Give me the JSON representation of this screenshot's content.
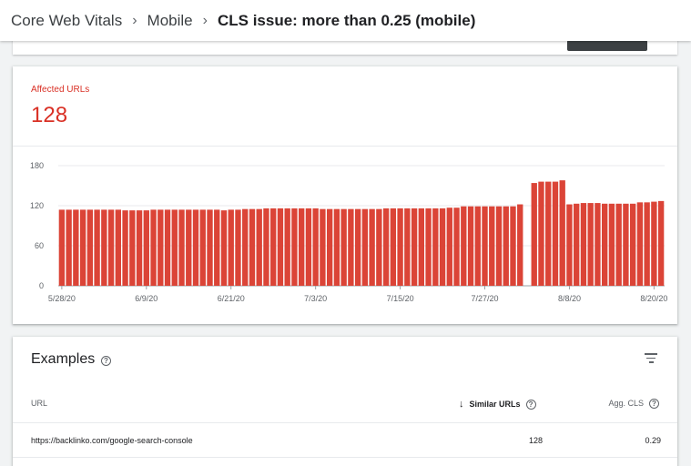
{
  "breadcrumb": {
    "items": [
      "Core Web Vitals",
      "Mobile"
    ],
    "current": "CLS issue: more than 0.25 (mobile)",
    "separator": "›"
  },
  "metric": {
    "label": "Affected URLs",
    "value": "128",
    "color": "#d93025"
  },
  "chart_data": {
    "type": "bar",
    "color": "#db4437",
    "ylim": [
      0,
      180
    ],
    "yticks": [
      "0",
      "60",
      "120",
      "180"
    ],
    "xtick_labels": [
      "5/28/20",
      "6/9/20",
      "6/21/20",
      "7/3/20",
      "7/15/20",
      "7/27/20",
      "8/8/20",
      "8/20/20"
    ],
    "xtick_index": [
      0,
      12,
      24,
      36,
      48,
      60,
      72,
      84
    ],
    "values": [
      114,
      114,
      114,
      114,
      114,
      114,
      114,
      114,
      114,
      113,
      113,
      113,
      113,
      114,
      114,
      114,
      114,
      114,
      114,
      114,
      114,
      114,
      114,
      113,
      114,
      114,
      115,
      115,
      115,
      116,
      116,
      116,
      116,
      116,
      116,
      116,
      116,
      115,
      115,
      115,
      115,
      115,
      115,
      115,
      115,
      115,
      116,
      116,
      116,
      116,
      116,
      116,
      116,
      116,
      116,
      117,
      117,
      119,
      119,
      119,
      119,
      119,
      119,
      119,
      119,
      122,
      null,
      154,
      156,
      156,
      156,
      158,
      122,
      123,
      124,
      124,
      124,
      123,
      123,
      123,
      123,
      123,
      125,
      125,
      126,
      127
    ],
    "grid": true
  },
  "examples": {
    "title": "Examples",
    "columns": {
      "url": "URL",
      "similar": "Similar URLs",
      "cls": "Agg. CLS"
    },
    "rows": [
      {
        "url": "https://backlinko.com/google-search-console",
        "similar": "128",
        "cls": "0.29"
      }
    ]
  }
}
